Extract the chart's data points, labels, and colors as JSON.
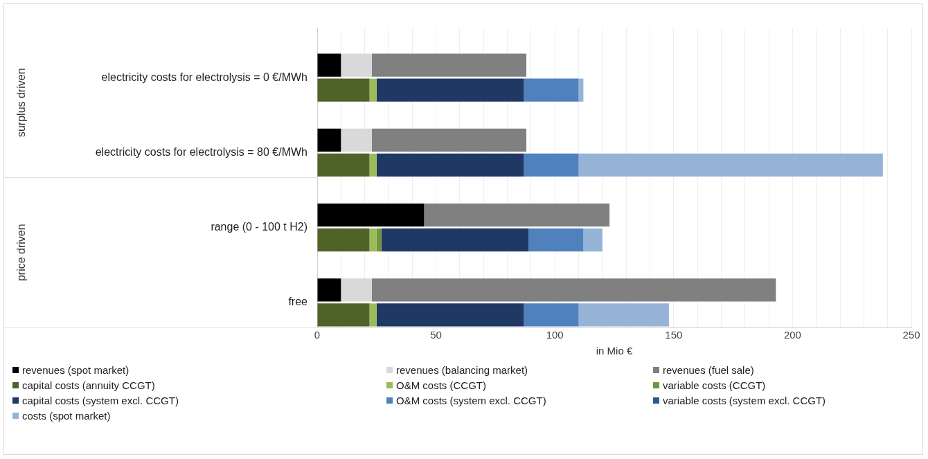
{
  "chart_data": {
    "type": "bar",
    "orientation": "horizontal",
    "stacked": true,
    "categories": [
      null,
      "electricity costs for electrolysis = 0 €/MWh",
      null,
      null,
      "electricity costs for electrolysis = 80 €/MWh",
      null,
      null,
      "range (0 - 100 t H2)",
      null,
      null,
      "free",
      null
    ],
    "series": [
      {
        "name": "revenues (spot market)",
        "color": "#000000",
        "values": [
          null,
          10,
          null,
          null,
          10,
          null,
          null,
          45,
          null,
          null,
          10,
          null
        ]
      },
      {
        "name": "revenues (balancing market)",
        "color": "#d9d9d9",
        "values": [
          null,
          13,
          null,
          null,
          13,
          null,
          null,
          0,
          null,
          null,
          13,
          null
        ]
      },
      {
        "name": "revenues (fuel sale)",
        "color": "#808080",
        "values": [
          null,
          65,
          null,
          null,
          65,
          null,
          null,
          78,
          null,
          null,
          170,
          null
        ]
      },
      {
        "name": "capital costs (annuity CCGT)",
        "color": "#4f6228",
        "values": [
          null,
          null,
          22,
          null,
          null,
          22,
          null,
          null,
          22,
          null,
          null,
          22
        ]
      },
      {
        "name": "O&M costs (CCGT)",
        "color": "#9bbb59",
        "values": [
          null,
          null,
          3,
          null,
          null,
          3,
          null,
          null,
          3,
          null,
          null,
          3
        ]
      },
      {
        "name": "variable costs (CCGT)",
        "color": "#77933c",
        "values": [
          null,
          null,
          0,
          null,
          null,
          0,
          null,
          null,
          2,
          null,
          null,
          0
        ]
      },
      {
        "name": "capital costs (system excl. CCGT)",
        "color": "#1f3864",
        "values": [
          null,
          null,
          62,
          null,
          null,
          62,
          null,
          null,
          62,
          null,
          null,
          62
        ]
      },
      {
        "name": "O&M costs (system excl. CCGT)",
        "color": "#4f81bd",
        "values": [
          null,
          null,
          23,
          null,
          null,
          23,
          null,
          null,
          23,
          null,
          null,
          23
        ]
      },
      {
        "name": "variable costs (system excl. CCGT)",
        "color": "#2e5a88",
        "values": [
          null,
          null,
          0,
          null,
          null,
          0,
          null,
          null,
          0,
          null,
          null,
          0
        ]
      },
      {
        "name": "costs (spot market)",
        "color": "#95b3d7",
        "values": [
          null,
          null,
          2,
          null,
          null,
          128,
          null,
          null,
          8,
          null,
          null,
          38
        ]
      }
    ],
    "xlim": [
      0,
      250
    ],
    "xticks": [
      0,
      {
        "value": 10,
        "label": null
      },
      {
        "value": 20,
        "label": null
      },
      {
        "value": 30,
        "label": null
      },
      {
        "value": 40,
        "label": null
      },
      50,
      {
        "value": 60,
        "label": null
      },
      {
        "value": 70,
        "label": null
      },
      {
        "value": 80,
        "label": null
      },
      {
        "value": 90,
        "label": null
      },
      100,
      {
        "value": 110,
        "label": null
      },
      {
        "value": 120,
        "label": null
      },
      {
        "value": 130,
        "label": null
      },
      {
        "value": 140,
        "label": null
      },
      150,
      {
        "value": 160,
        "label": null
      },
      {
        "value": 170,
        "label": null
      },
      {
        "value": 180,
        "label": null
      },
      {
        "value": 190,
        "label": null
      },
      200,
      {
        "value": 210,
        "label": null
      },
      {
        "value": 220,
        "label": null
      },
      {
        "value": 230,
        "label": null
      },
      {
        "value": 240,
        "label": null
      },
      250
    ],
    "xlabel": "in Mio €",
    "annotations": [
      "surplus driven",
      "price driven"
    ],
    "grid": "x",
    "legend": "bottom"
  }
}
